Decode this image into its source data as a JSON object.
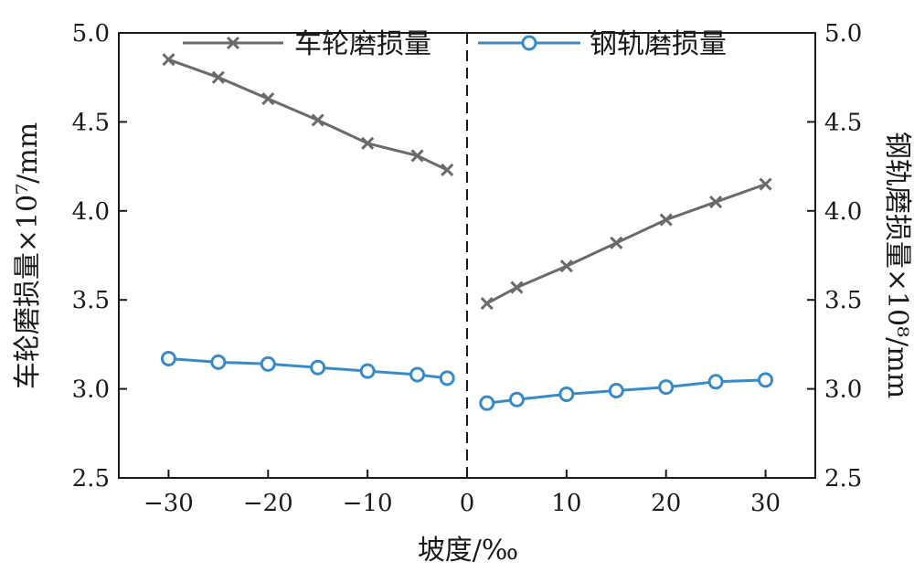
{
  "chart_data": {
    "type": "line",
    "xlabel": "坡度/‰",
    "ylabel_left": "车轮磨损量×10⁷/mm",
    "ylabel_right": "钢轨磨损量×10⁸/mm",
    "xlim": [
      -35,
      35
    ],
    "ylim": [
      2.5,
      5.0
    ],
    "x_ticks": [
      -30,
      -20,
      -10,
      0,
      10,
      20,
      30
    ],
    "x_tick_labels": [
      "−30",
      "−20",
      "−10",
      "0",
      "10",
      "20",
      "30"
    ],
    "y_ticks": [
      2.5,
      3.0,
      3.5,
      4.0,
      4.5,
      5.0
    ],
    "y_tick_labels": [
      "2.5",
      "3.0",
      "3.5",
      "4.0",
      "4.5",
      "5.0"
    ],
    "divider_x": 0,
    "legend_position": "top",
    "series": [
      {
        "name": "车轮磨损量",
        "color": "#6b6b6b",
        "marker": "x",
        "segments": [
          {
            "x": [
              -30,
              -25,
              -20,
              -15,
              -10,
              -5,
              -2
            ],
            "y": [
              4.85,
              4.75,
              4.63,
              4.51,
              4.38,
              4.31,
              4.23
            ]
          },
          {
            "x": [
              2,
              5,
              10,
              15,
              20,
              25,
              30
            ],
            "y": [
              3.48,
              3.57,
              3.69,
              3.82,
              3.95,
              4.05,
              4.15
            ]
          }
        ]
      },
      {
        "name": "钢轨磨损量",
        "color": "#3a8ac8",
        "marker": "circle",
        "segments": [
          {
            "x": [
              -30,
              -25,
              -20,
              -15,
              -10,
              -5,
              -2
            ],
            "y": [
              3.17,
              3.15,
              3.14,
              3.12,
              3.1,
              3.08,
              3.06
            ]
          },
          {
            "x": [
              2,
              5,
              10,
              15,
              20,
              25,
              30
            ],
            "y": [
              2.92,
              2.94,
              2.97,
              2.99,
              3.01,
              3.04,
              3.05
            ]
          }
        ]
      }
    ]
  }
}
